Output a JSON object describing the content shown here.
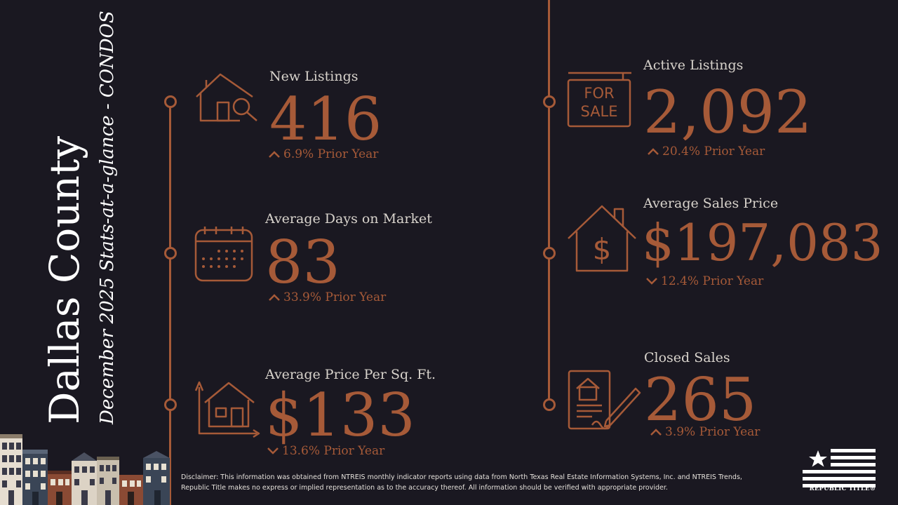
{
  "title": {
    "county": "Dallas County",
    "subtitle": "December 2025 Stats-at-a-glance - CONDOS"
  },
  "stats": {
    "new_listings": {
      "label": "New Listings",
      "value": "416",
      "change": "6.9% Prior Year",
      "direction": "up",
      "icon": "house-search-icon"
    },
    "avg_days": {
      "label": "Average Days on Market",
      "value": "83",
      "change": "33.9% Prior Year",
      "direction": "up",
      "icon": "calendar-icon"
    },
    "price_sqft": {
      "label": "Average Price Per Sq. Ft.",
      "value": "$133",
      "change": "13.6% Prior Year",
      "direction": "down",
      "icon": "house-dimensions-icon"
    },
    "active_listings": {
      "label": "Active Listings",
      "value": "2,092",
      "change": "20.4% Prior Year",
      "direction": "up",
      "icon": "for-sale-sign-icon",
      "sign_line1": "FOR",
      "sign_line2": "SALE"
    },
    "avg_sales_price": {
      "label": "Average Sales Price",
      "value": "$197,083",
      "change": "12.4% Prior Year",
      "direction": "down",
      "icon": "house-dollar-icon"
    },
    "closed_sales": {
      "label": "Closed Sales",
      "value": "265",
      "change": "3.9% Prior Year",
      "direction": "up",
      "icon": "contract-signing-icon"
    }
  },
  "disclaimer": "Disclaimer: This information was obtained from NTREIS monthly indicator reports using data from North Texas Real Estate Information Systems, Inc. and NTREIS Trends, Republic Title makes no express or implied representation as to the accuracy thereof. All information should be verified with appropriate provider.",
  "logo": {
    "text": "REPUBLIC TITLE®",
    "icon": "flag-star-logo"
  },
  "colors": {
    "background": "#1a1821",
    "accent": "#a65a38",
    "label": "#d8d3cc",
    "title": "#ffffff"
  }
}
